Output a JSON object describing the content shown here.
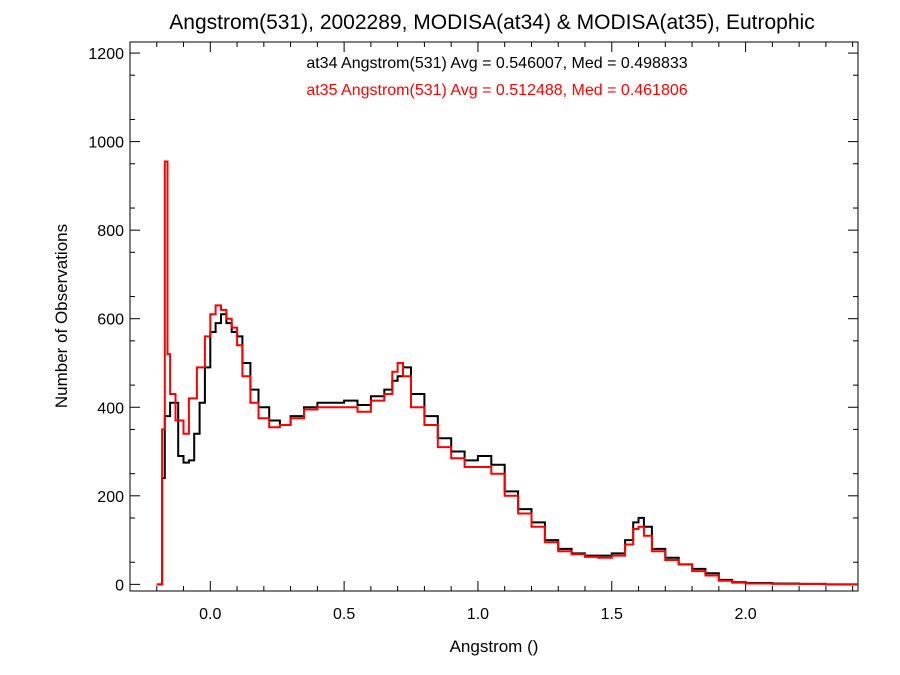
{
  "chart_data": {
    "type": "line",
    "step": true,
    "title": "Angstrom(531), 2002289, MODISA(at34) & MODISA(at35), Eutrophic",
    "xlabel": "Angstrom ()",
    "ylabel": "Number of Observations",
    "xlim": [
      -0.3,
      2.42
    ],
    "ylim": [
      -15,
      1225
    ],
    "x_ticks": [
      0.0,
      0.5,
      1.0,
      1.5,
      2.0
    ],
    "x_tick_labels": [
      "0.0",
      "0.5",
      "1.0",
      "1.5",
      "2.0"
    ],
    "y_ticks": [
      0,
      200,
      400,
      600,
      800,
      1000,
      1200
    ],
    "y_tick_labels": [
      "0",
      "200",
      "400",
      "600",
      "800",
      "1000",
      "1200"
    ],
    "grid": false,
    "annotations": [
      {
        "text": "at34 Angstrom(531) Avg = 0.546007, Med = 0.498833",
        "color": "#000000"
      },
      {
        "text": "at35 Angstrom(531) Avg = 0.512488, Med = 0.461806",
        "color": "#ff0000"
      }
    ],
    "series": [
      {
        "color": "#000000",
        "x": [
          -0.2,
          -0.18,
          -0.17,
          -0.15,
          -0.12,
          -0.1,
          -0.08,
          -0.06,
          -0.04,
          -0.02,
          0.0,
          0.02,
          0.04,
          0.06,
          0.08,
          0.1,
          0.12,
          0.15,
          0.18,
          0.22,
          0.26,
          0.3,
          0.35,
          0.4,
          0.45,
          0.5,
          0.55,
          0.6,
          0.65,
          0.68,
          0.7,
          0.72,
          0.75,
          0.8,
          0.85,
          0.9,
          0.95,
          1.0,
          1.05,
          1.1,
          1.15,
          1.2,
          1.25,
          1.3,
          1.35,
          1.4,
          1.45,
          1.5,
          1.55,
          1.58,
          1.6,
          1.62,
          1.65,
          1.7,
          1.75,
          1.8,
          1.85,
          1.9,
          1.95,
          2.0,
          2.1,
          2.2,
          2.3,
          2.42
        ],
        "y": [
          0,
          240,
          380,
          410,
          290,
          275,
          280,
          340,
          410,
          490,
          570,
          590,
          610,
          590,
          570,
          560,
          500,
          440,
          400,
          370,
          360,
          380,
          400,
          410,
          410,
          415,
          405,
          425,
          440,
          460,
          470,
          490,
          430,
          380,
          330,
          300,
          280,
          290,
          270,
          210,
          170,
          140,
          100,
          80,
          70,
          65,
          65,
          70,
          100,
          140,
          150,
          130,
          80,
          60,
          45,
          35,
          25,
          10,
          5,
          3,
          2,
          1,
          0,
          0
        ]
      },
      {
        "color": "#ff0000",
        "x": [
          -0.2,
          -0.18,
          -0.17,
          -0.16,
          -0.15,
          -0.13,
          -0.1,
          -0.08,
          -0.05,
          -0.02,
          0.0,
          0.02,
          0.04,
          0.06,
          0.08,
          0.1,
          0.12,
          0.15,
          0.18,
          0.22,
          0.26,
          0.3,
          0.35,
          0.4,
          0.45,
          0.5,
          0.55,
          0.6,
          0.65,
          0.68,
          0.7,
          0.72,
          0.75,
          0.8,
          0.85,
          0.9,
          0.95,
          1.0,
          1.05,
          1.1,
          1.15,
          1.2,
          1.25,
          1.3,
          1.35,
          1.4,
          1.45,
          1.5,
          1.55,
          1.58,
          1.6,
          1.62,
          1.65,
          1.7,
          1.75,
          1.8,
          1.85,
          1.9,
          1.95,
          2.0,
          2.1,
          2.2,
          2.3,
          2.42
        ],
        "y": [
          0,
          350,
          955,
          520,
          430,
          370,
          340,
          420,
          490,
          560,
          610,
          630,
          620,
          600,
          580,
          540,
          470,
          410,
          375,
          355,
          360,
          375,
          395,
          400,
          400,
          400,
          390,
          415,
          430,
          480,
          500,
          470,
          400,
          360,
          310,
          285,
          265,
          265,
          250,
          200,
          160,
          130,
          95,
          75,
          68,
          62,
          60,
          65,
          90,
          125,
          130,
          110,
          75,
          55,
          45,
          30,
          20,
          8,
          4,
          2,
          1,
          1,
          0,
          0
        ]
      }
    ]
  }
}
